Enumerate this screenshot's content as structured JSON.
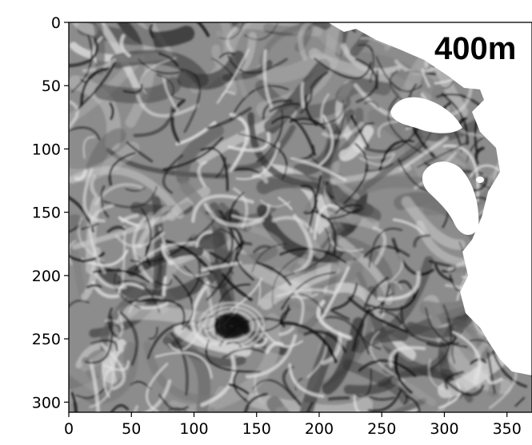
{
  "image": {
    "annotation": "400m",
    "colormap": "grayscale",
    "x_axis": {
      "range": [
        0,
        370
      ],
      "ticks": [
        0,
        50,
        100,
        150,
        200,
        250,
        300,
        350
      ]
    },
    "y_axis": {
      "range": [
        0,
        308
      ],
      "inverted": true,
      "ticks": [
        0,
        50,
        100,
        150,
        200,
        250,
        300
      ]
    },
    "colors": {
      "background": "#ffffff",
      "field_base": "#8c8c8c",
      "dark_filament": "#101010",
      "light_filament": "#e4e4e4",
      "land": "#ffffff"
    }
  }
}
